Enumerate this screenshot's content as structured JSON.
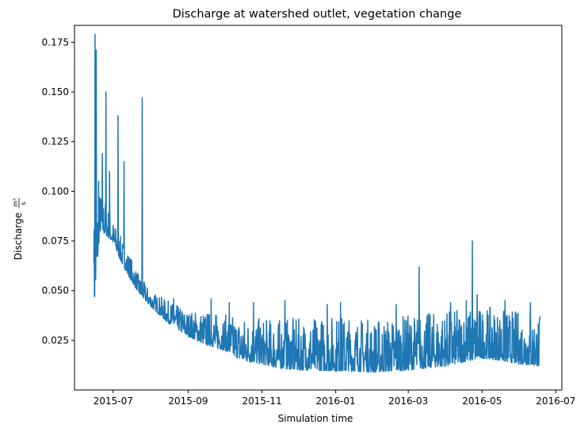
{
  "chart_data": {
    "type": "line",
    "title": "Discharge at watershed outlet, vegetation change",
    "xlabel": "Simulation time",
    "ylabel": "Discharge",
    "ylabel_unit": {
      "numerator": "m³",
      "denominator": "s"
    },
    "x_tick_labels": [
      "2015-07",
      "2015-09",
      "2015-11",
      "2016-01",
      "2016-03",
      "2016-05",
      "2016-07"
    ],
    "y_tick_values": [
      0.025,
      0.05,
      0.075,
      0.1,
      0.125,
      0.15,
      0.175
    ],
    "y_tick_labels": [
      "0.025",
      "0.050",
      "0.075",
      "0.100",
      "0.125",
      "0.150",
      "0.175"
    ],
    "xlim": [
      "2015-05-30",
      "2016-07-06"
    ],
    "ylim": [
      0.0,
      0.1835
    ],
    "grid": false,
    "color": "#1f77b4",
    "series": [
      {
        "baseline": [
          [
            "2015-06-15",
            0.04
          ],
          [
            "2015-06-20",
            0.08
          ],
          [
            "2015-06-25",
            0.078
          ],
          [
            "2015-07-01",
            0.074
          ],
          [
            "2015-07-08",
            0.064
          ],
          [
            "2015-07-15",
            0.056
          ],
          [
            "2015-07-22",
            0.049
          ],
          [
            "2015-08-01",
            0.042
          ],
          [
            "2015-08-15",
            0.034
          ],
          [
            "2015-09-01",
            0.027
          ],
          [
            "2015-09-15",
            0.023
          ],
          [
            "2015-10-01",
            0.02
          ],
          [
            "2015-10-15",
            0.015
          ],
          [
            "2015-11-01",
            0.013
          ],
          [
            "2015-11-15",
            0.011
          ],
          [
            "2015-12-01",
            0.01
          ],
          [
            "2015-12-15",
            0.01
          ],
          [
            "2016-01-01",
            0.0095
          ],
          [
            "2016-01-15",
            0.0095
          ],
          [
            "2016-02-01",
            0.009
          ],
          [
            "2016-02-15",
            0.0095
          ],
          [
            "2016-03-01",
            0.01
          ],
          [
            "2016-03-15",
            0.011
          ],
          [
            "2016-04-01",
            0.012
          ],
          [
            "2016-04-15",
            0.014
          ],
          [
            "2016-05-01",
            0.016
          ],
          [
            "2016-05-15",
            0.015
          ],
          [
            "2016-06-01",
            0.013
          ],
          [
            "2016-06-18",
            0.012
          ]
        ],
        "envelope": [
          [
            "2015-06-15",
            0.088
          ],
          [
            "2015-06-20",
            0.1
          ],
          [
            "2015-06-25",
            0.095
          ],
          [
            "2015-07-01",
            0.085
          ],
          [
            "2015-07-08",
            0.076
          ],
          [
            "2015-07-15",
            0.068
          ],
          [
            "2015-07-22",
            0.058
          ],
          [
            "2015-08-01",
            0.05
          ],
          [
            "2015-08-15",
            0.045
          ],
          [
            "2015-09-01",
            0.04
          ],
          [
            "2015-09-15",
            0.04
          ],
          [
            "2015-10-01",
            0.038
          ],
          [
            "2015-11-01",
            0.036
          ],
          [
            "2015-12-01",
            0.036
          ],
          [
            "2016-01-01",
            0.038
          ],
          [
            "2016-02-01",
            0.036
          ],
          [
            "2016-03-01",
            0.038
          ],
          [
            "2016-04-01",
            0.04
          ],
          [
            "2016-05-01",
            0.042
          ],
          [
            "2016-06-01",
            0.04
          ],
          [
            "2016-06-18",
            0.038
          ]
        ],
        "peaks": [
          [
            "2015-06-15",
            0.064
          ],
          [
            "2015-06-16",
            0.179
          ],
          [
            "2015-06-17",
            0.171
          ],
          [
            "2015-06-19",
            0.105
          ],
          [
            "2015-06-22",
            0.119
          ],
          [
            "2015-06-25",
            0.15
          ],
          [
            "2015-06-28",
            0.11
          ],
          [
            "2015-07-05",
            0.138
          ],
          [
            "2015-07-10",
            0.115
          ],
          [
            "2015-07-25",
            0.147
          ],
          [
            "2015-08-20",
            0.046
          ],
          [
            "2015-09-20",
            0.046
          ],
          [
            "2015-10-05",
            0.044
          ],
          [
            "2015-10-25",
            0.044
          ],
          [
            "2015-11-20",
            0.045
          ],
          [
            "2015-12-25",
            0.043
          ],
          [
            "2016-01-05",
            0.044
          ],
          [
            "2016-02-20",
            0.043
          ],
          [
            "2016-03-10",
            0.062
          ],
          [
            "2016-04-05",
            0.044
          ],
          [
            "2016-04-18",
            0.045
          ],
          [
            "2016-04-23",
            0.075
          ],
          [
            "2016-04-27",
            0.048
          ],
          [
            "2016-05-20",
            0.045
          ],
          [
            "2016-06-10",
            0.044
          ],
          [
            "2016-06-18",
            0.037
          ]
        ]
      }
    ]
  }
}
